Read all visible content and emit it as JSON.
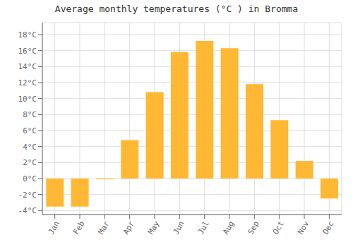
{
  "chart_data": {
    "type": "bar",
    "title": "Average monthly temperatures (°C ) in Bromma",
    "categories": [
      "Jan",
      "Feb",
      "Mar",
      "Apr",
      "May",
      "Jun",
      "Jul",
      "Aug",
      "Sep",
      "Oct",
      "Nov",
      "Dec"
    ],
    "values": [
      -3.5,
      -3.5,
      -0.1,
      4.8,
      10.8,
      15.8,
      17.2,
      16.3,
      11.8,
      7.3,
      2.2,
      -2.5
    ],
    "color": "#FFB833",
    "ylim": [
      -4.5,
      19.5
    ],
    "yticks": [
      {
        "value": -4,
        "label": "-4°C"
      },
      {
        "value": -2,
        "label": "-2°C"
      },
      {
        "value": 0,
        "label": "0°C"
      },
      {
        "value": 2,
        "label": "2°C"
      },
      {
        "value": 4,
        "label": "4°C"
      },
      {
        "value": 6,
        "label": "6°C"
      },
      {
        "value": 8,
        "label": "8°C"
      },
      {
        "value": 10,
        "label": "10°C"
      },
      {
        "value": 12,
        "label": "12°C"
      },
      {
        "value": 14,
        "label": "14°C"
      },
      {
        "value": 16,
        "label": "16°C"
      },
      {
        "value": 18,
        "label": "18°C"
      }
    ],
    "grid": true
  }
}
